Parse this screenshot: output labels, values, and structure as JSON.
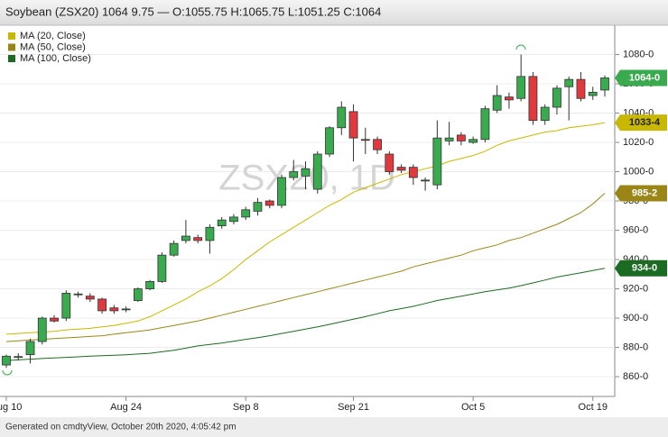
{
  "chart_data": {
    "type": "candlestick",
    "title": "Soybean (ZSX20) 1064 9.75 — O:1055.75 H:1065.75 L:1051.25 C:1064",
    "watermark": "ZSX20, 1D",
    "footer": "Generated on cmdtyView, October 20th 2020, 4:05:42 pm",
    "categories": [
      "Aug 10",
      null,
      null,
      null,
      null,
      null,
      null,
      null,
      null,
      null,
      "Aug 24",
      null,
      null,
      null,
      null,
      null,
      null,
      null,
      null,
      null,
      "Sep 8",
      null,
      null,
      null,
      null,
      null,
      null,
      null,
      null,
      "Sep 21",
      null,
      null,
      null,
      null,
      null,
      null,
      null,
      null,
      null,
      "Oct 5",
      null,
      null,
      null,
      null,
      null,
      null,
      null,
      null,
      null,
      "Oct 19",
      null
    ],
    "open": [
      868,
      873.5,
      875,
      884,
      900,
      900,
      916,
      915,
      913,
      907,
      906,
      912,
      920,
      925,
      943,
      953,
      955,
      953,
      963,
      966,
      969,
      973,
      980,
      977,
      996,
      997,
      988,
      1012,
      1030,
      1041,
      1022,
      1022,
      1012,
      1003,
      1003,
      994,
      991,
      1021,
      1025,
      1020,
      1022,
      1042,
      1051,
      1050,
      1065,
      1035,
      1044,
      1058,
      1063,
      1052,
      1055.75
    ],
    "high": [
      875,
      876,
      886,
      901,
      902,
      919,
      918,
      917,
      914,
      909,
      908,
      921,
      926,
      945,
      953,
      967,
      957,
      964,
      969,
      971,
      976,
      982,
      981,
      998,
      1008,
      1007,
      1014,
      1031,
      1048,
      1046,
      1030,
      1024,
      1014,
      1005,
      1005,
      996,
      1035,
      1034,
      1027,
      1024,
      1045,
      1059,
      1054,
      1080,
      1068,
      1046,
      1059,
      1065,
      1068,
      1058,
      1065.75
    ],
    "low": [
      866,
      871,
      869,
      882,
      897,
      898,
      914,
      911,
      903,
      903,
      904,
      911,
      919,
      924,
      942,
      951,
      951,
      944,
      961,
      964,
      967,
      970,
      975,
      975,
      994,
      988,
      985,
      1010,
      1025,
      1007,
      1012,
      1012,
      998,
      999,
      991,
      987,
      988,
      1018,
      1018,
      1019,
      1020,
      1040,
      1043,
      1048,
      1032,
      1032,
      1039,
      1035,
      1048,
      1049,
      1051.25
    ],
    "close": [
      874,
      873.75,
      884,
      900,
      898,
      917,
      916.5,
      913,
      905,
      905,
      906.25,
      920,
      925,
      943,
      951,
      956,
      953,
      962,
      967,
      969,
      974,
      979,
      977,
      996,
      1000,
      1002,
      1012,
      1030,
      1044,
      1023,
      1021.5,
      1015,
      1000,
      1001,
      996,
      994.25,
      1023,
      1023,
      1021,
      1022,
      1043,
      1052,
      1049,
      1065,
      1035,
      1044,
      1057,
      1063,
      1050,
      1054.25,
      1064
    ],
    "up_color": "#3aaa4f",
    "down_color": "#e0393e",
    "last_label": "1064-0",
    "series": [
      {
        "name": "MA (20, Close)",
        "color": "#c9b800",
        "last_label": "1033-4",
        "values": [
          889,
          889.5,
          890,
          890.5,
          891,
          892,
          892.5,
          893,
          894,
          895,
          896.5,
          898,
          901,
          905,
          909,
          913,
          918,
          922,
          927,
          933,
          940,
          946,
          952,
          957,
          962,
          967,
          972,
          977,
          981,
          986,
          989,
          992,
          995,
          998,
          1000,
          1002,
          1004,
          1007,
          1009,
          1011,
          1014,
          1018,
          1021,
          1023,
          1025,
          1027,
          1028,
          1030,
          1031,
          1032,
          1033.5
        ]
      },
      {
        "name": "MA (50, Close)",
        "color": "#9a8616",
        "last_label": "985-2",
        "values": [
          884,
          884.5,
          885,
          885.5,
          886,
          886.5,
          887,
          887.5,
          888,
          889,
          890,
          891,
          892,
          893.5,
          895,
          896.5,
          898,
          900,
          902,
          904,
          906,
          908,
          910,
          912,
          914,
          916,
          918,
          920,
          922,
          924,
          926,
          928,
          930,
          932,
          935,
          937,
          939,
          941,
          943,
          946,
          948,
          950,
          953,
          955,
          958,
          961,
          964,
          968,
          972,
          978,
          985.25
        ]
      },
      {
        "name": "MA (100, Close)",
        "color": "#1c6b22",
        "last_label": "934-0",
        "values": [
          871,
          871.5,
          872,
          872.4,
          872.8,
          873.2,
          873.6,
          874,
          874.3,
          874.6,
          875,
          875.5,
          876,
          877,
          878,
          879.5,
          881,
          882,
          883,
          884.2,
          885.5,
          886.7,
          888,
          889.5,
          891,
          892.5,
          894,
          895.7,
          897.5,
          899.2,
          901,
          903,
          905,
          906.5,
          908,
          910,
          912,
          913.5,
          915,
          916.5,
          918,
          919.2,
          920.5,
          922.2,
          924,
          926,
          928,
          929.5,
          931,
          932.5,
          934
        ]
      }
    ],
    "ylim": [
      846.5,
      1100
    ],
    "yticks": [
      {
        "value": 860,
        "label": "860-0"
      },
      {
        "value": 880,
        "label": "880-0"
      },
      {
        "value": 900,
        "label": "900-0"
      },
      {
        "value": 920,
        "label": "920-0"
      },
      {
        "value": 940,
        "label": "940-0"
      },
      {
        "value": 960,
        "label": "960-0"
      },
      {
        "value": 980,
        "label": "980-0"
      },
      {
        "value": 1000,
        "label": "1000-0"
      },
      {
        "value": 1020,
        "label": "1020-0"
      },
      {
        "value": 1040,
        "label": "1040-0"
      },
      {
        "value": 1060,
        "label": "1060-0"
      },
      {
        "value": 1080,
        "label": "1080-0"
      }
    ],
    "grid": true
  }
}
